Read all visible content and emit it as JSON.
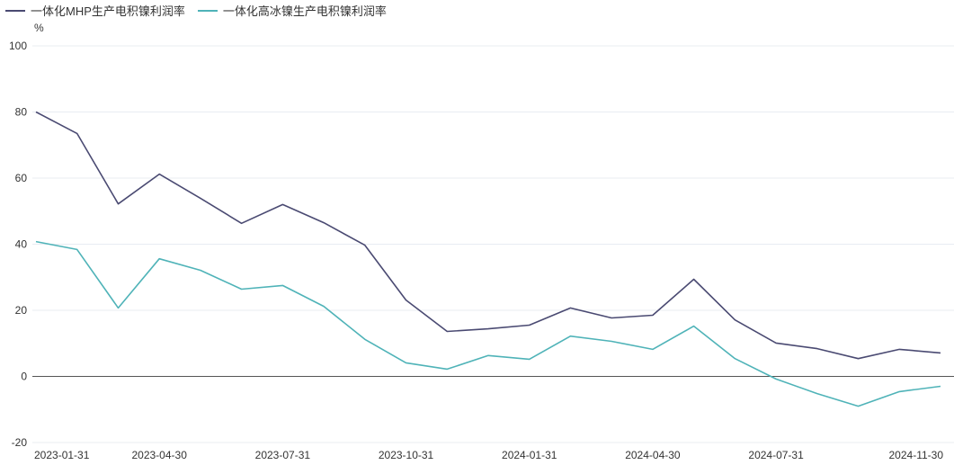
{
  "chart_data": {
    "type": "line",
    "ylabel": "%",
    "ylim": [
      -20,
      100
    ],
    "yticks": [
      -20,
      0,
      20,
      40,
      60,
      80,
      100
    ],
    "grid": true,
    "legend_position": "top-left",
    "x": [
      "2023-01-31",
      "2023-02-28",
      "2023-03-31",
      "2023-04-30",
      "2023-05-31",
      "2023-06-30",
      "2023-07-31",
      "2023-08-31",
      "2023-09-30",
      "2023-10-31",
      "2023-11-30",
      "2023-12-31",
      "2024-01-31",
      "2024-02-29",
      "2024-03-31",
      "2024-04-30",
      "2024-05-31",
      "2024-06-30",
      "2024-07-31",
      "2024-08-31",
      "2024-09-30",
      "2024-10-31",
      "2024-11-30"
    ],
    "xtick_labels": [
      "2023-01-31",
      "2023-04-30",
      "2023-07-31",
      "2023-10-31",
      "2024-01-31",
      "2024-04-30",
      "2024-07-31",
      "2024-11-30"
    ],
    "series": [
      {
        "name": "一体化MHP生产电积镍利润率",
        "color": "#4a4a72",
        "values": [
          80,
          73.5,
          52.2,
          61.2,
          53.9,
          46.3,
          52,
          46.5,
          39.7,
          23.1,
          13.6,
          14.4,
          15.5,
          20.7,
          17.7,
          18.5,
          29.4,
          17.1,
          10.1,
          8.4,
          5.4,
          8.2,
          7.1
        ]
      },
      {
        "name": "一体化高冰镍生产电积镍利润率",
        "color": "#4fb3b8",
        "values": [
          40.8,
          38.4,
          20.7,
          35.6,
          32.1,
          26.4,
          27.5,
          21.2,
          11.2,
          4.1,
          2.2,
          6.3,
          5.2,
          12.2,
          10.6,
          8.2,
          15.2,
          5.4,
          -0.8,
          -5.2,
          -9,
          -4.6,
          -3
        ]
      }
    ]
  }
}
